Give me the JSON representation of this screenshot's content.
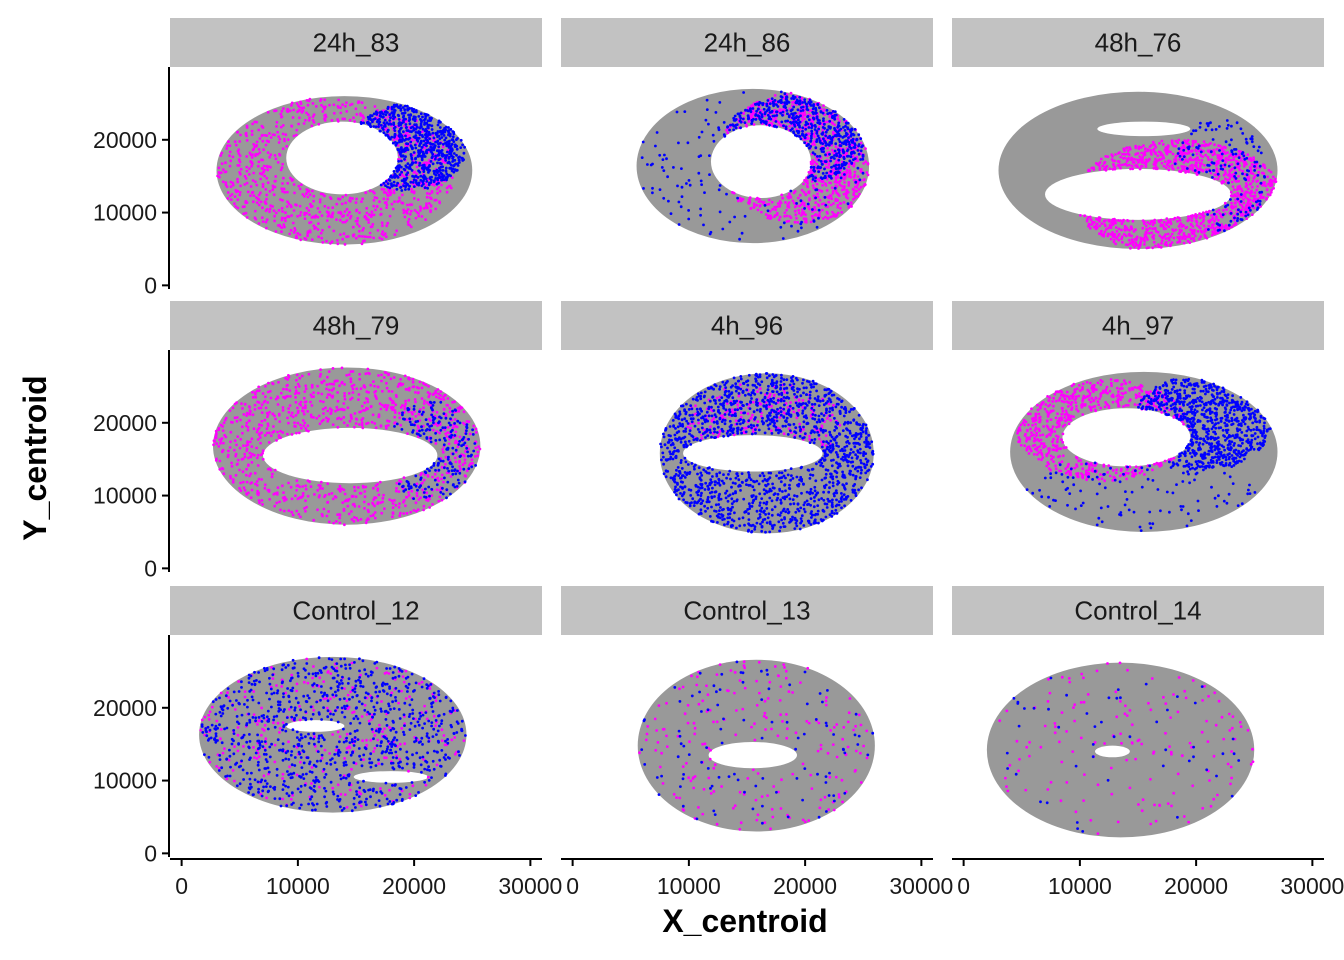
{
  "chart_data": {
    "type": "scatter",
    "layout": "facet_wrap 3x3",
    "xlabel": "X_centroid",
    "ylabel": "Y_centroid",
    "xlim": [
      -1000,
      31000
    ],
    "ylim": [
      -500,
      30000
    ],
    "x_ticks": [
      0,
      10000,
      20000,
      30000
    ],
    "x_tick_labels": [
      "0",
      "10000",
      "20000",
      "30000"
    ],
    "y_ticks": [
      0,
      10000,
      20000
    ],
    "y_tick_labels": [
      "0",
      "10000",
      "20000"
    ],
    "grid": false,
    "legend": "none",
    "colors": {
      "background_cells": "#999999",
      "magenta_cells": "#ff00ff",
      "blue_cells": "#0000ff",
      "strip_fill": "#c2c2c2"
    },
    "panels": [
      {
        "name": "24h_83",
        "outer": {
          "cx": 14000,
          "cy": 15800,
          "rx": 11000,
          "ry": 10200
        },
        "lumens": [
          {
            "cx": 13800,
            "cy": 17500,
            "rx": 4800,
            "ry": 5000
          }
        ],
        "magenta": [
          {
            "cx": 12500,
            "cy": 15500,
            "rx": 11000,
            "ry": 10200,
            "n": 900
          }
        ],
        "blue": [
          {
            "cx": 19500,
            "cy": 19000,
            "rx": 5000,
            "ry": 6000,
            "n": 700
          }
        ]
      },
      {
        "name": "24h_86",
        "outer": {
          "cx": 15500,
          "cy": 16400,
          "rx": 10000,
          "ry": 10600
        },
        "lumens": [
          {
            "cx": 16200,
            "cy": 17000,
            "rx": 4300,
            "ry": 5000
          }
        ],
        "magenta": [
          {
            "cx": 19500,
            "cy": 17500,
            "rx": 7000,
            "ry": 9000,
            "n": 800
          }
        ],
        "blue": [
          {
            "cx": 19000,
            "cy": 20000,
            "rx": 6000,
            "ry": 6000,
            "n": 500
          },
          {
            "cx": 15500,
            "cy": 16400,
            "rx": 10000,
            "ry": 10600,
            "n": 150
          }
        ]
      },
      {
        "name": "48h_76",
        "outer": {
          "cx": 15000,
          "cy": 15800,
          "rx": 12000,
          "ry": 10800
        },
        "lumens": [
          {
            "cx": 15000,
            "cy": 12500,
            "rx": 8000,
            "ry": 3500
          },
          {
            "cx": 15500,
            "cy": 21500,
            "rx": 4000,
            "ry": 1000
          }
        ],
        "magenta": [
          {
            "cx": 18500,
            "cy": 12000,
            "rx": 9000,
            "ry": 8000,
            "n": 1100
          }
        ],
        "blue": [
          {
            "cx": 22000,
            "cy": 15000,
            "rx": 4000,
            "ry": 8000,
            "n": 150
          }
        ]
      },
      {
        "name": "48h_79",
        "outer": {
          "cx": 14200,
          "cy": 16800,
          "rx": 11500,
          "ry": 10800
        },
        "lumens": [
          {
            "cx": 14500,
            "cy": 15500,
            "rx": 7500,
            "ry": 3800
          }
        ],
        "magenta": [
          {
            "cx": 14200,
            "cy": 16800,
            "rx": 11500,
            "ry": 10800,
            "n": 1000
          }
        ],
        "blue": [
          {
            "cx": 21500,
            "cy": 16000,
            "rx": 4000,
            "ry": 7000,
            "n": 200
          }
        ]
      },
      {
        "name": "4h_96",
        "outer": {
          "cx": 16700,
          "cy": 15800,
          "rx": 9200,
          "ry": 11000
        },
        "lumens": [
          {
            "cx": 15500,
            "cy": 15800,
            "rx": 6000,
            "ry": 2500
          }
        ],
        "magenta": [
          {
            "cx": 16500,
            "cy": 19500,
            "rx": 7000,
            "ry": 6000,
            "n": 200
          }
        ],
        "blue": [
          {
            "cx": 16700,
            "cy": 15800,
            "rx": 9200,
            "ry": 11000,
            "n": 1500
          }
        ]
      },
      {
        "name": "4h_97",
        "outer": {
          "cx": 15500,
          "cy": 16000,
          "rx": 11500,
          "ry": 11000
        },
        "lumens": [
          {
            "cx": 14000,
            "cy": 18000,
            "rx": 5500,
            "ry": 4000
          }
        ],
        "magenta": [
          {
            "cx": 12000,
            "cy": 19000,
            "rx": 7500,
            "ry": 7000,
            "n": 600
          }
        ],
        "blue": [
          {
            "cx": 20500,
            "cy": 20000,
            "rx": 6000,
            "ry": 6500,
            "n": 800
          },
          {
            "cx": 15500,
            "cy": 10000,
            "rx": 11000,
            "ry": 6000,
            "n": 120
          }
        ]
      },
      {
        "name": "Control_12",
        "outer": {
          "cx": 13000,
          "cy": 16300,
          "rx": 11500,
          "ry": 10700
        },
        "lumens": [
          {
            "cx": 11500,
            "cy": 17500,
            "rx": 2500,
            "ry": 800
          },
          {
            "cx": 18000,
            "cy": 10500,
            "rx": 3200,
            "ry": 800
          }
        ],
        "magenta": [
          {
            "cx": 13000,
            "cy": 16300,
            "rx": 11500,
            "ry": 10700,
            "n": 300
          }
        ],
        "blue": [
          {
            "cx": 13000,
            "cy": 16300,
            "rx": 11500,
            "ry": 10700,
            "n": 900
          }
        ]
      },
      {
        "name": "Control_13",
        "outer": {
          "cx": 15800,
          "cy": 14800,
          "rx": 10200,
          "ry": 11800
        },
        "lumens": [
          {
            "cx": 15500,
            "cy": 13500,
            "rx": 3800,
            "ry": 1800
          }
        ],
        "magenta": [
          {
            "cx": 15800,
            "cy": 14800,
            "rx": 10200,
            "ry": 11800,
            "n": 200
          }
        ],
        "blue": [
          {
            "cx": 15800,
            "cy": 14800,
            "rx": 10200,
            "ry": 11800,
            "n": 100
          }
        ]
      },
      {
        "name": "Control_14",
        "outer": {
          "cx": 13500,
          "cy": 14200,
          "rx": 11500,
          "ry": 12000
        },
        "lumens": [
          {
            "cx": 12800,
            "cy": 14000,
            "rx": 1500,
            "ry": 800
          }
        ],
        "magenta": [
          {
            "cx": 13500,
            "cy": 14200,
            "rx": 11500,
            "ry": 12000,
            "n": 150
          }
        ],
        "blue": [
          {
            "cx": 13500,
            "cy": 14200,
            "rx": 11500,
            "ry": 12000,
            "n": 50
          }
        ]
      }
    ]
  }
}
